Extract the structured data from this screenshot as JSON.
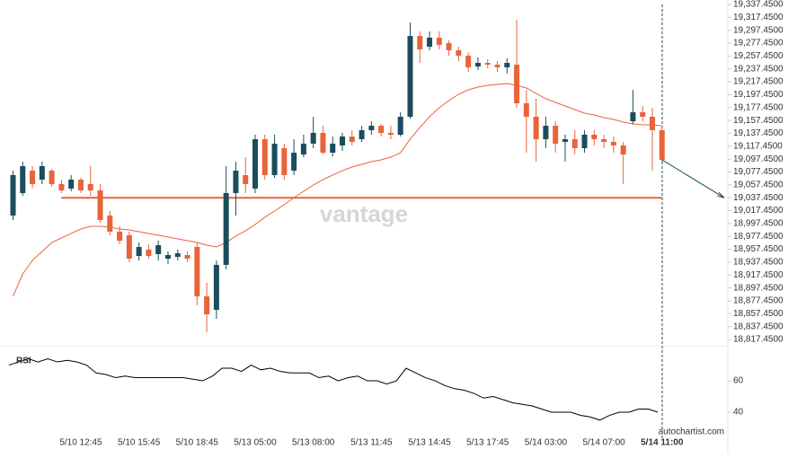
{
  "chart_data": [
    {
      "type": "candlestick",
      "categories": [
        null,
        null,
        null,
        null,
        null,
        null,
        null,
        "5/10 12:45",
        null,
        null,
        null,
        null,
        null,
        "5/10 15:45",
        null,
        null,
        null,
        null,
        null,
        "5/10 18:45",
        null,
        null,
        null,
        null,
        null,
        "5/13 05:00",
        null,
        null,
        null,
        null,
        null,
        "5/13 08:00",
        null,
        null,
        null,
        null,
        null,
        "5/13 11:45",
        null,
        null,
        null,
        null,
        null,
        "5/13 14:45",
        null,
        null,
        null,
        null,
        null,
        "5/13 17:45",
        null,
        null,
        null,
        null,
        null,
        "5/14 03:00",
        null,
        null,
        null,
        null,
        null,
        "5/14 07:00",
        null,
        null,
        null,
        null,
        null,
        "5/14 11:00"
      ],
      "open": [
        19009.8,
        19044.7,
        19079.5,
        19065.6,
        19079.5,
        19058.6,
        19051.7,
        19065.6,
        19058.6,
        19048.9,
        19009.8,
        18984.7,
        18979.2,
        18947.1,
        18956.9,
        18949.9,
        18942.9,
        18945.7,
        18948.5,
        18961.0,
        18884.4,
        18863.5,
        18933.2,
        19044.7,
        19072.6,
        19051.7,
        19128.3,
        19072.6,
        19114.4,
        19079.5,
        19104.6,
        19121.4,
        19138.1,
        19107.4,
        19118.6,
        19132.5,
        19128.3,
        19142.3,
        19149.2,
        19138.1,
        19135.3,
        19163.2,
        19288.6,
        19271.9,
        19285.9,
        19277.5,
        19266.3,
        19258.0,
        19241.2,
        19246.8,
        19244.0,
        19239.9,
        19244.0,
        19184.1,
        19163.2,
        19128.3,
        19149.2,
        19124.1,
        19128.3,
        19114.4,
        19135.3,
        19128.3,
        19124.1,
        19118.6,
        19156.2,
        19170.2,
        19163.2,
        19142.3
      ],
      "high": [
        19079.5,
        19093.5,
        19086.5,
        19093.5,
        19082.3,
        19065.6,
        19072.6,
        19068.4,
        19086.5,
        19058.6,
        19016.8,
        18993.1,
        18984.7,
        18968.0,
        18965.2,
        18970.8,
        18954.1,
        18956.9,
        18954.1,
        18968.0,
        18905.3,
        18940.1,
        19086.5,
        19093.5,
        19100.4,
        19135.3,
        19135.3,
        19135.3,
        19121.4,
        19128.3,
        19135.3,
        19163.2,
        19149.2,
        19132.5,
        19138.1,
        19142.3,
        19149.2,
        19156.2,
        19152.0,
        19149.2,
        19170.2,
        19309.6,
        19295.6,
        19295.6,
        19295.6,
        19281.7,
        19271.9,
        19263.5,
        19255.2,
        19252.4,
        19249.6,
        19253.8,
        19313.7,
        19205.0,
        19191.1,
        19163.2,
        19156.2,
        19135.3,
        19142.3,
        19142.3,
        19142.3,
        19135.3,
        19132.5,
        19124.1,
        19205.0,
        19179.9,
        19177.1,
        19149.2
      ],
      "low": [
        19002.9,
        19040.5,
        19051.7,
        19058.6,
        19054.4,
        19044.7,
        19047.5,
        19044.7,
        19040.5,
        18998.7,
        18979.2,
        18965.2,
        18937.4,
        18940.1,
        18942.9,
        18940.1,
        18934.6,
        18940.1,
        18937.4,
        18870.4,
        18828.6,
        18849.5,
        18926.2,
        19009.8,
        19044.7,
        19044.7,
        19065.6,
        19068.4,
        19065.6,
        19072.6,
        19100.4,
        19114.4,
        19104.6,
        19101.8,
        19110.2,
        19118.6,
        19124.1,
        19135.3,
        19132.5,
        19128.3,
        19132.5,
        19160.4,
        19246.8,
        19266.3,
        19267.7,
        19258.0,
        19249.6,
        19232.9,
        19235.7,
        19238.5,
        19232.9,
        19230.1,
        19177.1,
        19107.4,
        19093.5,
        19114.4,
        19107.4,
        19093.5,
        19104.6,
        19107.4,
        19118.6,
        19114.4,
        19107.4,
        19058.6,
        19152.0,
        19156.2,
        19079.5,
        19093.5
      ],
      "close": [
        19072.6,
        19086.5,
        19058.6,
        19086.5,
        19058.6,
        19048.9,
        19065.6,
        19048.9,
        19048.9,
        19002.9,
        18984.7,
        18970.8,
        18942.9,
        18961.0,
        18947.1,
        18963.8,
        18948.5,
        18951.3,
        18942.9,
        18884.4,
        18856.5,
        18933.2,
        19044.7,
        19079.5,
        19058.6,
        19128.3,
        19072.6,
        19121.4,
        19072.6,
        19107.4,
        19121.4,
        19138.1,
        19107.4,
        19121.4,
        19132.5,
        19124.1,
        19142.3,
        19149.2,
        19138.1,
        19135.3,
        19163.2,
        19288.6,
        19267.7,
        19285.9,
        19274.7,
        19266.3,
        19258.0,
        19239.9,
        19246.8,
        19244.0,
        19239.9,
        19246.8,
        19184.1,
        19163.2,
        19128.3,
        19149.2,
        19121.4,
        19128.3,
        19114.4,
        19135.3,
        19128.3,
        19124.1,
        19118.6,
        19104.6,
        19170.2,
        19163.2,
        19142.3,
        19096.3
      ],
      "bull_color": "#1b4d5c",
      "bear_color": "#e8643a",
      "ma": {
        "color": "#e8643a",
        "values": [
          18884.4,
          18919.2,
          18940.1,
          18954.1,
          18968.0,
          18975.0,
          18982.0,
          18988.9,
          18993.1,
          18993.1,
          18991.7,
          18988.9,
          18987.5,
          18984.7,
          18982.0,
          18979.2,
          18976.4,
          18973.6,
          18970.8,
          18968.0,
          18963.8,
          18961.0,
          18968.0,
          18977.8,
          18986.1,
          18995.9,
          19007.1,
          19016.8,
          19026.6,
          19037.7,
          19047.5,
          19057.2,
          19065.6,
          19072.6,
          19079.5,
          19085.1,
          19089.3,
          19093.5,
          19096.3,
          19100.4,
          19107.4,
          19128.3,
          19146.5,
          19163.2,
          19177.1,
          19188.3,
          19198.0,
          19205.0,
          19209.2,
          19212.0,
          19213.4,
          19214.8,
          19212.0,
          19207.8,
          19199.4,
          19191.1,
          19185.5,
          19179.9,
          19174.3,
          19168.8,
          19166.0,
          19161.8,
          19159.0,
          19154.8,
          19152.0,
          19150.6,
          19150.6,
          19149.2
        ]
      },
      "level": {
        "value": 19037.45,
        "color": "#e8643a"
      },
      "ylim": [
        18817.45,
        19337.45
      ],
      "yticks": [
        {
          "value": 18817.45,
          "label": "18,817.4500"
        },
        {
          "value": 18837.45,
          "label": "18,837.4500"
        },
        {
          "value": 18857.45,
          "label": "18,857.4500"
        },
        {
          "value": 18877.45,
          "label": "18,877.4500"
        },
        {
          "value": 18897.45,
          "label": "18,897.4500"
        },
        {
          "value": 18917.45,
          "label": "18,917.4500"
        },
        {
          "value": 18937.45,
          "label": "18,937.4500"
        },
        {
          "value": 18957.45,
          "label": "18,957.4500"
        },
        {
          "value": 18977.45,
          "label": "18,977.4500"
        },
        {
          "value": 18997.45,
          "label": "18,997.4500"
        },
        {
          "value": 19017.45,
          "label": "19,017.4500"
        },
        {
          "value": 19037.45,
          "label": "19,037.4500"
        },
        {
          "value": 19057.45,
          "label": "19,057.4500"
        },
        {
          "value": 19077.45,
          "label": "19,077.4500"
        },
        {
          "value": 19097.45,
          "label": "19,097.4500"
        },
        {
          "value": 19117.45,
          "label": "19,117.4500"
        },
        {
          "value": 19137.45,
          "label": "19,137.4500"
        },
        {
          "value": 19157.45,
          "label": "19,157.4500"
        },
        {
          "value": 19177.45,
          "label": "19,177.4500"
        },
        {
          "value": 19197.45,
          "label": "19,197.4500"
        },
        {
          "value": 19217.45,
          "label": "19,217.4500"
        },
        {
          "value": 19237.45,
          "label": "19,237.4500"
        },
        {
          "value": 19257.45,
          "label": "19,257.4500"
        },
        {
          "value": 19277.45,
          "label": "19,277.4500"
        },
        {
          "value": 19297.45,
          "label": "19,297.4500"
        },
        {
          "value": 19317.45,
          "label": "19,317.4500"
        },
        {
          "value": 19337.45,
          "label": "19,337.4500"
        }
      ]
    },
    {
      "type": "line",
      "title": "RSI",
      "color": "#000000",
      "values": [
        70,
        72,
        74,
        72,
        74,
        72,
        73,
        72,
        70,
        65,
        64,
        62,
        63,
        62,
        62,
        62,
        62,
        62,
        62,
        61,
        60,
        63,
        68,
        68,
        66,
        70,
        67,
        68,
        66,
        65,
        65,
        65,
        62,
        63,
        60,
        62,
        63,
        60,
        60,
        58,
        60,
        68,
        65,
        62,
        60,
        57,
        55,
        54,
        52,
        49,
        50,
        48,
        46,
        45,
        44,
        42,
        40,
        40,
        40,
        38,
        37,
        35,
        38,
        40,
        40,
        42,
        42,
        40
      ],
      "ylim": [
        22.3,
        76.6
      ],
      "yticks": [
        40,
        60
      ]
    }
  ],
  "watermark": "vantage",
  "source": "autochartist.com"
}
